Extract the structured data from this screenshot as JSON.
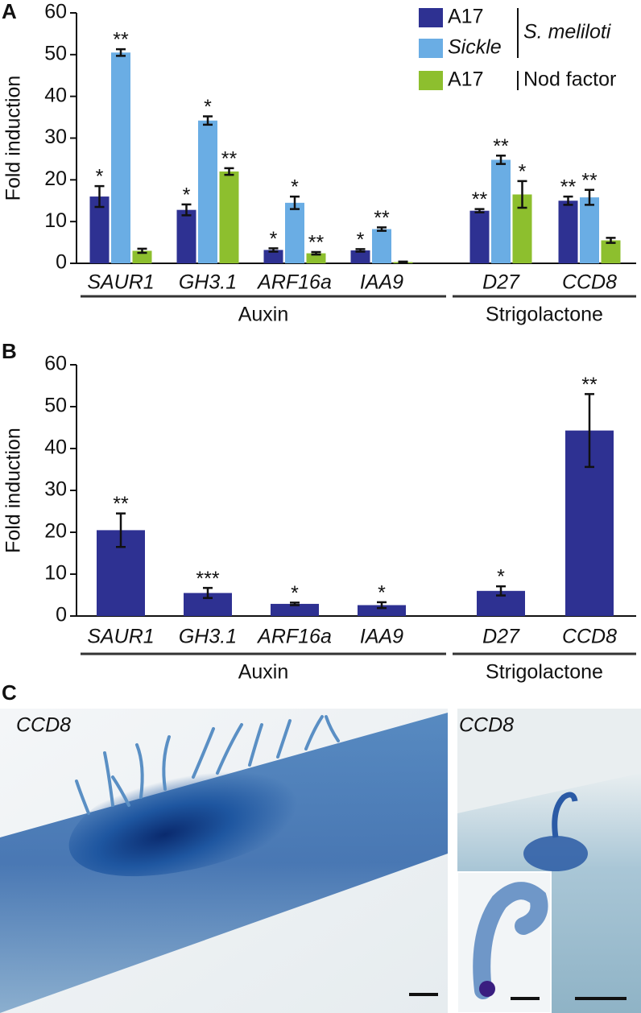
{
  "chart_data": [
    {
      "type": "bar",
      "panel": "A",
      "ylabel": "Fold induction",
      "categories": [
        "SAUR1",
        "GH3.1",
        "ARF16a",
        "IAA9",
        "D27",
        "CCD8"
      ],
      "category_groups": [
        "Auxin",
        "Auxin",
        "Auxin",
        "Auxin",
        "Strigolactone",
        "Strigolactone"
      ],
      "ylim": [
        0,
        60
      ],
      "yticks": [
        0,
        10,
        20,
        30,
        40,
        50,
        60
      ],
      "grid": false,
      "series": [
        {
          "name": "A17",
          "treatment": "S. meliloti",
          "color": "#2e3192",
          "values": [
            16,
            12.8,
            3.2,
            3.1,
            12.6,
            15
          ],
          "errors": [
            2.5,
            1.3,
            0.4,
            0.3,
            0.4,
            1.0
          ],
          "annotations": [
            "*",
            "*",
            "*",
            "*",
            "**",
            "**"
          ]
        },
        {
          "name": "Sickle",
          "treatment": "S. meliloti",
          "color": "#6aade4",
          "values": [
            50.5,
            34.2,
            14.5,
            8.2,
            24.8,
            15.8
          ],
          "errors": [
            0.8,
            1.0,
            1.5,
            0.4,
            1.0,
            1.8
          ],
          "annotations": [
            "**",
            "*",
            "*",
            "**",
            "**",
            "**"
          ]
        },
        {
          "name": "A17",
          "treatment": "Nod factor",
          "color": "#8dbf2e",
          "values": [
            3,
            22,
            2.4,
            0.3,
            16.5,
            5.5
          ],
          "errors": [
            0.5,
            0.8,
            0.3,
            0.1,
            3.2,
            0.6
          ],
          "annotations": [
            null,
            "**",
            "**",
            null,
            "*",
            null
          ]
        }
      ]
    },
    {
      "type": "bar",
      "panel": "B",
      "ylabel": "Fold induction",
      "categories": [
        "SAUR1",
        "GH3.1",
        "ARF16a",
        "IAA9",
        "D27",
        "CCD8"
      ],
      "category_groups": [
        "Auxin",
        "Auxin",
        "Auxin",
        "Auxin",
        "Strigolactone",
        "Strigolactone"
      ],
      "ylim": [
        0,
        60
      ],
      "yticks": [
        0,
        10,
        20,
        30,
        40,
        50,
        60
      ],
      "grid": false,
      "series": [
        {
          "name": "A17",
          "color": "#2e3192",
          "values": [
            20.5,
            5.5,
            2.9,
            2.6,
            6,
            44.3
          ],
          "errors": [
            4,
            1.2,
            0.3,
            0.7,
            1.1,
            8.7
          ],
          "annotations": [
            "**",
            "***",
            "*",
            "*",
            "*",
            "**"
          ]
        }
      ]
    }
  ],
  "panel_c": {
    "panel": "C",
    "photos": [
      {
        "label": "CCD8"
      },
      {
        "label": "CCD8"
      }
    ]
  }
}
